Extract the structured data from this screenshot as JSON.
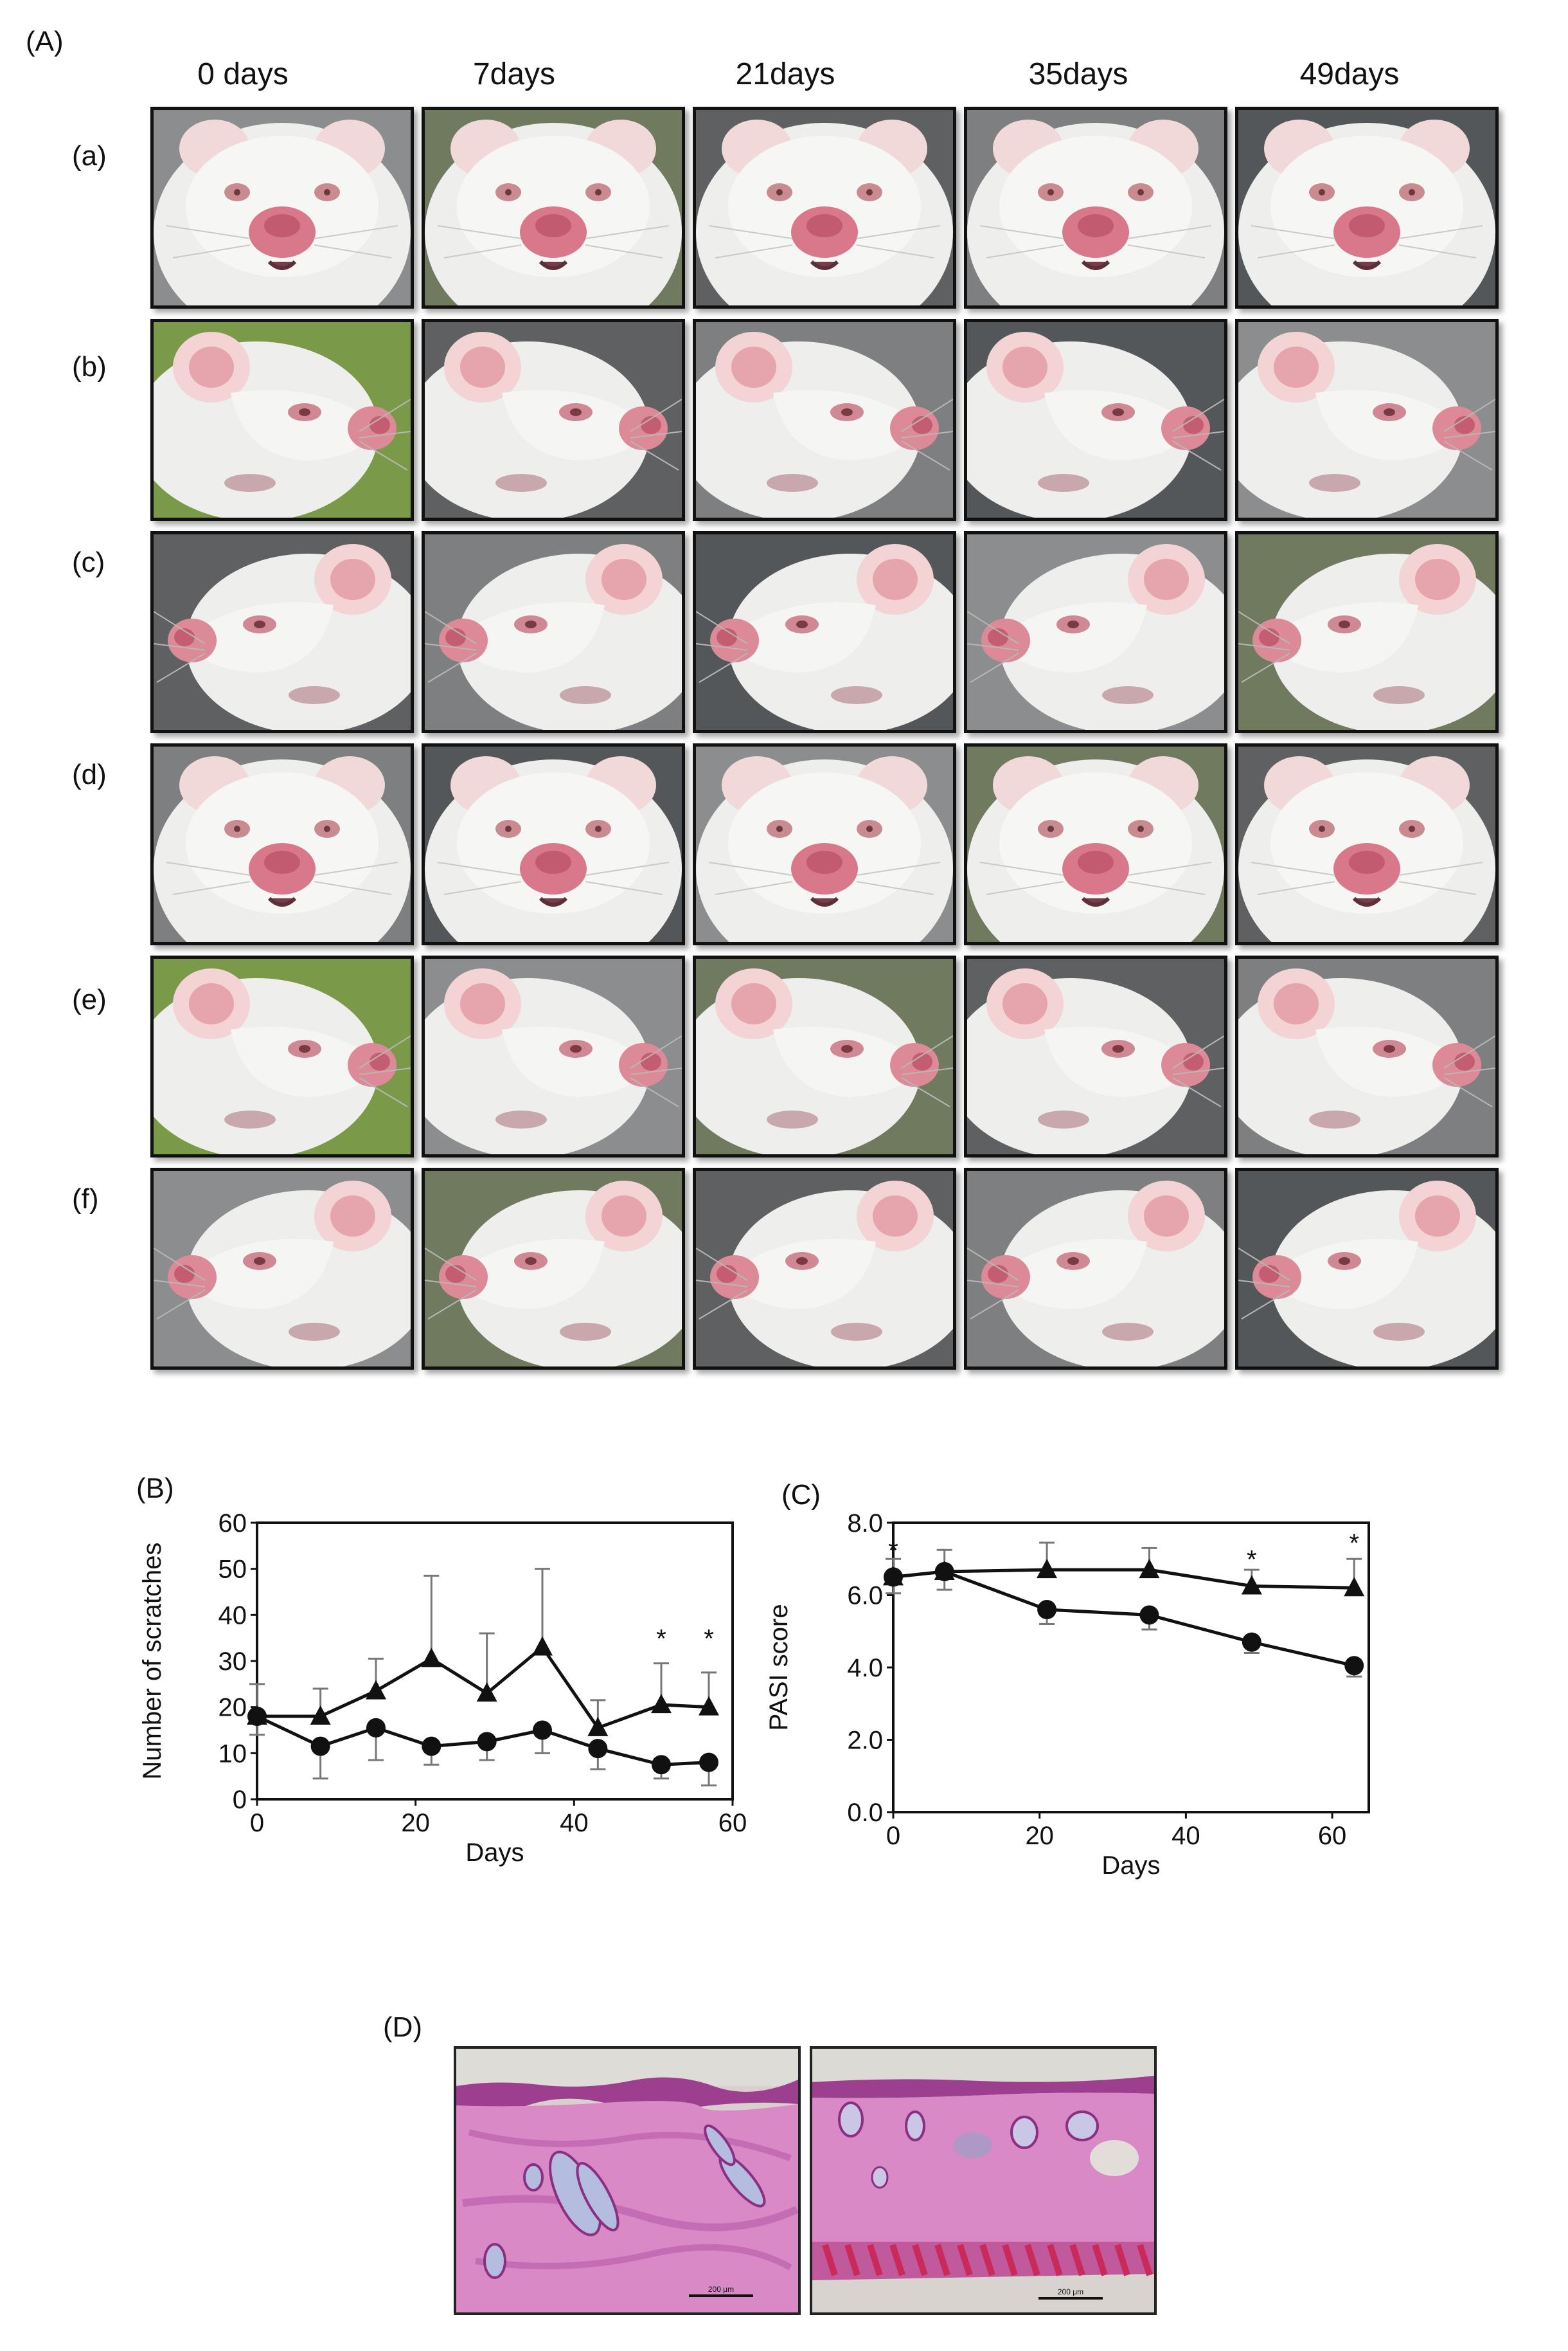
{
  "panelA": {
    "label": "(A)",
    "days": [
      "0 days",
      "7days",
      "21days",
      "35days",
      "49days"
    ],
    "rows": [
      {
        "label": "(a)",
        "view": "front"
      },
      {
        "label": "(b)",
        "view": "side-right"
      },
      {
        "label": "(c)",
        "view": "side-left"
      },
      {
        "label": "(d)",
        "view": "front"
      },
      {
        "label": "(e)",
        "view": "side-right"
      },
      {
        "label": "(f)",
        "view": "side-left"
      }
    ]
  },
  "panelB": {
    "label": "(B)"
  },
  "panelC": {
    "label": "(C)"
  },
  "panelD": {
    "label": "(D)",
    "scale_bar_label": "200 μm"
  },
  "chart_data": [
    {
      "type": "line",
      "panel": "(B)",
      "xlabel": "Days",
      "ylabel": "Number of scratches",
      "xlim": [
        0,
        60
      ],
      "ylim": [
        0,
        60
      ],
      "xticks": [
        0,
        20,
        40,
        60
      ],
      "yticks": [
        0,
        10,
        20,
        30,
        40,
        50,
        60
      ],
      "xtick_labels": [
        "0",
        "20",
        "40",
        "60"
      ],
      "ytick_labels": [
        "0",
        "10",
        "20",
        "30",
        "40",
        "50",
        "60"
      ],
      "series": [
        {
          "name": "triangle",
          "marker": "triangle",
          "x": [
            0,
            8,
            15,
            22,
            29,
            36,
            43,
            51,
            57
          ],
          "y": [
            18,
            18,
            23.5,
            30.5,
            23,
            33,
            15.5,
            20.5,
            20
          ],
          "err": [
            7,
            6,
            7,
            18,
            13,
            17,
            6,
            9,
            7.5
          ]
        },
        {
          "name": "circle",
          "marker": "circle",
          "x": [
            0,
            8,
            15,
            22,
            29,
            36,
            43,
            51,
            57
          ],
          "y": [
            18,
            11.5,
            15.5,
            11.5,
            12.5,
            15,
            11,
            7.5,
            8
          ],
          "err": [
            4,
            7,
            7,
            4,
            4,
            5,
            4.5,
            3,
            5
          ]
        }
      ],
      "annotations": [
        {
          "text": "*",
          "x": 51,
          "y": 33
        },
        {
          "text": "*",
          "x": 57,
          "y": 33
        }
      ]
    },
    {
      "type": "line",
      "panel": "(C)",
      "xlabel": "Days",
      "ylabel": "PASI score",
      "xlim": [
        0,
        65
      ],
      "ylim": [
        0,
        8
      ],
      "xticks": [
        0,
        20,
        40,
        60
      ],
      "yticks": [
        0,
        2,
        4,
        6,
        8
      ],
      "xtick_labels": [
        "0",
        "20",
        "40",
        "60"
      ],
      "ytick_labels": [
        "0.0",
        "2.0",
        "4.0",
        "6.0",
        "8.0"
      ],
      "series": [
        {
          "name": "triangle",
          "marker": "triangle",
          "x": [
            0,
            7,
            21,
            35,
            49,
            63
          ],
          "y": [
            6.5,
            6.65,
            6.7,
            6.7,
            6.25,
            6.2
          ],
          "err": [
            0.5,
            0.6,
            0.75,
            0.6,
            0.45,
            0.8
          ]
        },
        {
          "name": "circle",
          "marker": "circle",
          "x": [
            0,
            7,
            21,
            35,
            49,
            63
          ],
          "y": [
            6.5,
            6.65,
            5.6,
            5.45,
            4.7,
            4.05
          ],
          "err": [
            0.45,
            0.5,
            0.4,
            0.4,
            0.3,
            0.3
          ]
        }
      ],
      "annotations": [
        {
          "text": "*",
          "x": 0,
          "y": 7.0
        },
        {
          "text": "*",
          "x": 49,
          "y": 6.75
        },
        {
          "text": "*",
          "x": 63,
          "y": 7.2
        }
      ]
    }
  ]
}
